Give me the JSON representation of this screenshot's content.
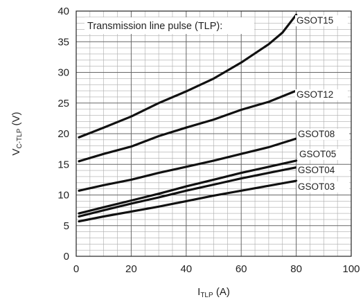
{
  "chart_data": {
    "type": "line",
    "title": "",
    "annotation": "Transmission line pulse (TLP):",
    "xlabel": {
      "main": "I",
      "sub": "TLP",
      "unit": " (A)"
    },
    "ylabel": {
      "main": "V",
      "sub": "C-TLP",
      "unit": " (V)"
    },
    "xlim": [
      0,
      100
    ],
    "ylim": [
      0,
      40
    ],
    "xticks": [
      0,
      20,
      40,
      60,
      80,
      100
    ],
    "yticks": [
      0,
      5,
      10,
      15,
      20,
      25,
      30,
      35,
      40
    ],
    "x_minor_step": 5,
    "y_minor_step": 1,
    "grid": true,
    "series": [
      {
        "name": "GSOT15",
        "x": [
          1,
          10,
          20,
          30,
          40,
          50,
          60,
          70,
          75,
          80
        ],
        "y": [
          19.4,
          21.0,
          22.8,
          25.0,
          26.9,
          29.0,
          31.6,
          34.6,
          36.5,
          39.4
        ]
      },
      {
        "name": "GSOT12",
        "x": [
          1,
          10,
          20,
          30,
          40,
          50,
          60,
          70,
          80
        ],
        "y": [
          15.5,
          16.7,
          17.9,
          19.6,
          21.0,
          22.3,
          23.9,
          25.2,
          27.0
        ]
      },
      {
        "name": "GSOT08",
        "x": [
          1,
          10,
          20,
          30,
          40,
          50,
          60,
          70,
          80
        ],
        "y": [
          10.7,
          11.6,
          12.5,
          13.6,
          14.6,
          15.6,
          16.7,
          17.8,
          19.2
        ]
      },
      {
        "name": "GSOT05",
        "x": [
          1,
          10,
          20,
          30,
          40,
          50,
          60,
          70,
          80
        ],
        "y": [
          7.0,
          8.0,
          9.1,
          10.2,
          11.4,
          12.5,
          13.6,
          14.6,
          15.6
        ]
      },
      {
        "name": "GSOT04",
        "x": [
          1,
          10,
          20,
          30,
          40,
          50,
          60,
          70,
          80
        ],
        "y": [
          6.5,
          7.5,
          8.6,
          9.6,
          10.7,
          11.7,
          12.7,
          13.6,
          14.5
        ]
      },
      {
        "name": "GSOT03",
        "x": [
          1,
          10,
          20,
          30,
          40,
          50,
          60,
          70,
          80
        ],
        "y": [
          5.7,
          6.5,
          7.3,
          8.1,
          9.0,
          9.9,
          10.7,
          11.5,
          12.3
        ]
      }
    ],
    "colors": {
      "line": "#111111",
      "grid_major": "#666666",
      "grid_minor": "#aaaaaa",
      "axis": "#222222"
    }
  }
}
